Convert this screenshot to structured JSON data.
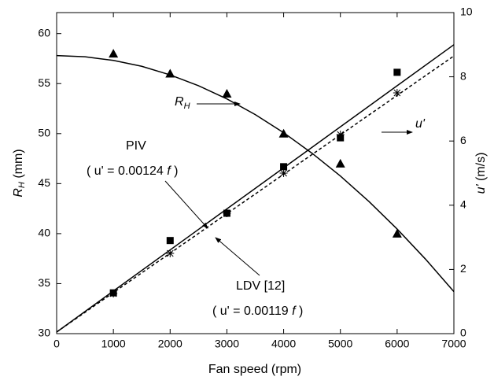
{
  "chart_data": {
    "type": "scatter",
    "xlabel": "Fan speed (rpm)",
    "ylabel": {
      "main": "R",
      "sub": "H",
      "rest": " (mm)"
    },
    "y2label": {
      "main": "u'",
      "rest": " (m/s)"
    },
    "xlim": [
      0,
      7000
    ],
    "xticks": [
      0,
      1000,
      2000,
      3000,
      4000,
      5000,
      6000,
      7000
    ],
    "ylim": [
      30,
      62.1
    ],
    "yticks": [
      30,
      35,
      40,
      45,
      50,
      55,
      60
    ],
    "y2lim": [
      0,
      10
    ],
    "y2ticks": [
      0,
      2,
      4,
      6,
      8,
      10
    ],
    "series": [
      {
        "marker": "triangle",
        "axis": "y",
        "color": "#000",
        "x": [
          1000,
          2000,
          3000,
          4000,
          5000,
          6000
        ],
        "values": [
          58,
          56,
          54,
          50,
          47,
          40
        ]
      },
      {
        "marker": "line",
        "axis": "y",
        "color": "#000",
        "x": [
          0,
          500,
          1000,
          1500,
          2000,
          2500,
          3000,
          3500,
          4000,
          4500,
          5000,
          5500,
          6000,
          6500,
          7000
        ],
        "values": [
          57.8,
          57.68,
          57.32,
          56.73,
          55.87,
          54.79,
          53.47,
          51.9,
          50.09,
          48.04,
          45.76,
          43.23,
          40.46,
          37.45,
          34.2
        ]
      },
      {
        "marker": "square",
        "axis": "y2",
        "color": "#000",
        "x": [
          1000,
          2000,
          3000,
          4000,
          5000,
          6000
        ],
        "values": [
          1.27,
          2.9,
          3.75,
          5.2,
          6.1,
          8.14
        ]
      },
      {
        "marker": "star",
        "axis": "y2",
        "color": "#000",
        "x": [
          1000,
          2000,
          3000,
          4000,
          5000,
          6000
        ],
        "values": [
          1.25,
          2.5,
          3.75,
          5.0,
          6.2,
          7.5
        ]
      },
      {
        "marker": "line",
        "axis": "y2",
        "color": "#000",
        "x": [
          0,
          7000
        ],
        "values": [
          0.05,
          9.0
        ]
      },
      {
        "marker": "dashed",
        "axis": "y2",
        "color": "#000",
        "x": [
          0,
          7000
        ],
        "values": [
          0.05,
          8.65
        ]
      }
    ],
    "annotations": {
      "rh": {
        "main": "R",
        "sub": "H"
      },
      "u": "u'",
      "piv": "PIV",
      "piv_eq": {
        "pre": "( u' = 0.00124 ",
        "f": "f",
        "post": " )"
      },
      "ldv": "LDV  [12]",
      "ldv_eq": {
        "pre": "( u' = 0.00119 ",
        "f": "f",
        "post": " )"
      }
    }
  }
}
